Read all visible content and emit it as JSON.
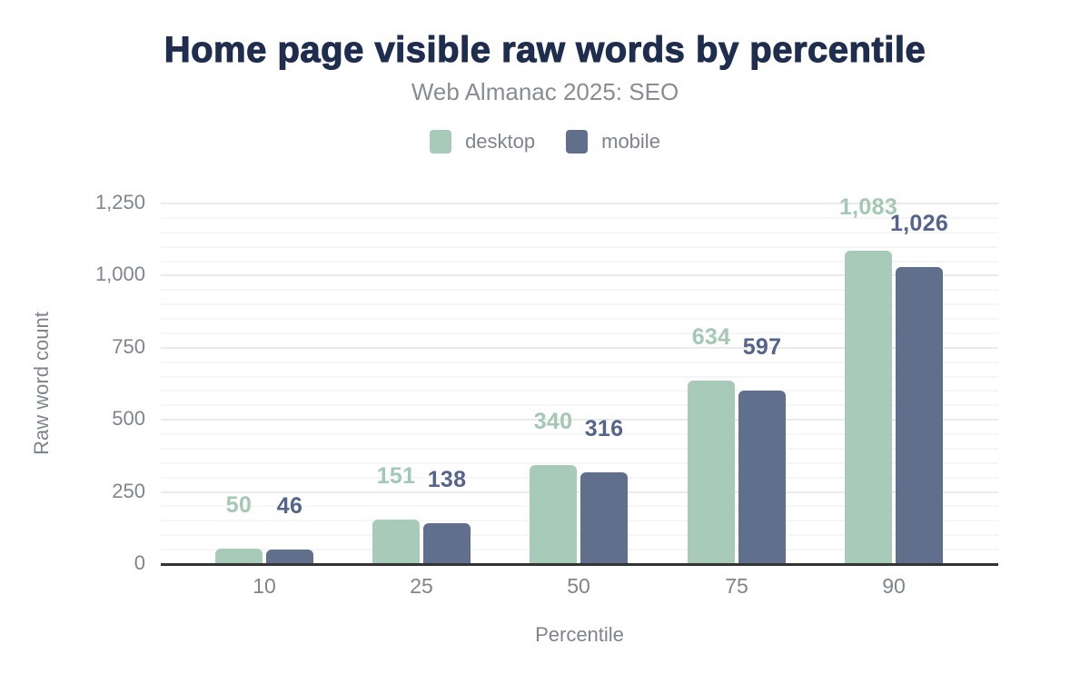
{
  "chart_data": {
    "type": "bar",
    "title": "Home page visible raw words by percentile",
    "subtitle": "Web Almanac 2025: SEO",
    "xlabel": "Percentile",
    "ylabel": "Raw word count",
    "categories": [
      "10",
      "25",
      "50",
      "75",
      "90"
    ],
    "series": [
      {
        "name": "desktop",
        "color": "#a8cab9",
        "label_color": "#a3c8b5",
        "values": [
          50,
          151,
          340,
          634,
          1083
        ]
      },
      {
        "name": "mobile",
        "color": "#5f6f8c",
        "label_color": "#54648a",
        "values": [
          46,
          138,
          316,
          597,
          1026
        ]
      }
    ],
    "ylim": [
      0,
      1250
    ],
    "y_major_step": 250,
    "y_minor_step": 50,
    "y_tick_labels": [
      "0",
      "250",
      "500",
      "750",
      "1,000",
      "1,250"
    ],
    "grid": "horizontal",
    "legend_position": "top",
    "bar_value_labels_shown": true
  },
  "colors": {
    "title": "#1f2d4e",
    "subtitle": "#888c93",
    "tick_text": "#7f848d",
    "axis_line": "#333333",
    "grid_major": "#ebebeb",
    "grid_minor": "#f6f6f6",
    "background": "#ffffff"
  }
}
